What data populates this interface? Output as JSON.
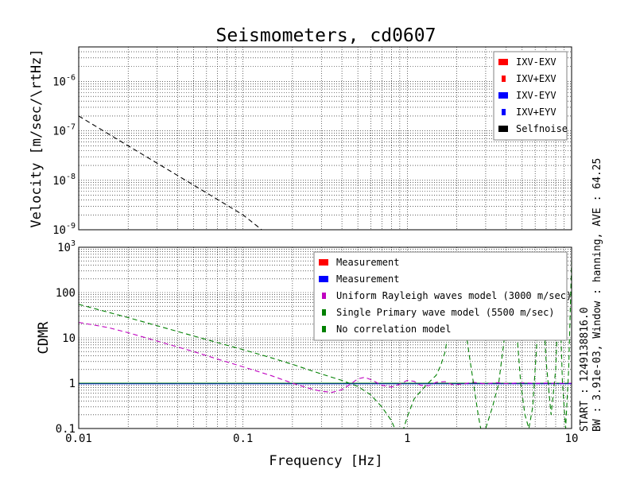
{
  "chart_data": [
    {
      "type": "line",
      "title": "Seismometers, cd0607",
      "ylabel": "Velocity [m/sec/\\rtHz]",
      "xscale": "log",
      "yscale": "log",
      "xlim": [
        0.01,
        10
      ],
      "ylim": [
        1e-09,
        5e-06
      ],
      "y_ticks": [
        {
          "value": 1e-06,
          "base": "10",
          "exp": "-6"
        },
        {
          "value": 1e-07,
          "base": "10",
          "exp": "-7"
        },
        {
          "value": 1e-08,
          "base": "10",
          "exp": "-8"
        },
        {
          "value": 1e-09,
          "base": "10",
          "exp": "-9"
        }
      ],
      "grid": true,
      "legend_position": "top-right",
      "legend": [
        {
          "name": "IXV-EXV",
          "color": "#ff0000"
        },
        {
          "name": "IXV+EXV",
          "color": "#ff0000"
        },
        {
          "name": "IXV-EYV",
          "color": "#0000ff"
        },
        {
          "name": "IXV+EYV",
          "color": "#0000ff"
        },
        {
          "name": "Selfnoise",
          "color": "#000000"
        }
      ],
      "series": [
        {
          "name": "Selfnoise",
          "color": "#000000",
          "dashed": true,
          "x": [
            0.01,
            0.02,
            0.05,
            0.1,
            0.13
          ],
          "y": [
            2e-07,
            5e-08,
            8e-09,
            2e-09,
            1e-09
          ]
        }
      ]
    },
    {
      "type": "line",
      "xlabel": "Frequency [Hz]",
      "ylabel": "CDMR",
      "xscale": "log",
      "yscale": "log",
      "xlim": [
        0.01,
        10
      ],
      "ylim": [
        0.1,
        1000
      ],
      "x_ticks": [
        {
          "value": 0.01,
          "label": "0.01"
        },
        {
          "value": 0.1,
          "label": "0.1"
        },
        {
          "value": 1,
          "label": "1"
        },
        {
          "value": 10,
          "label": "10"
        }
      ],
      "y_ticks": [
        {
          "value": 1000,
          "base": "10",
          "exp": "3"
        },
        {
          "value": 100,
          "base": "100",
          "exp": ""
        },
        {
          "value": 10,
          "base": "10",
          "exp": ""
        },
        {
          "value": 1,
          "base": "1",
          "exp": ""
        },
        {
          "value": 0.1,
          "base": "0.1",
          "exp": ""
        }
      ],
      "grid": true,
      "legend_position": "top-right",
      "legend": [
        {
          "name": "Measurement",
          "color": "#ff0000"
        },
        {
          "name": "Measurement",
          "color": "#0000ff"
        },
        {
          "name": "Uniform Rayleigh waves model (3000 m/sec)",
          "color": "#bf00bf"
        },
        {
          "name": "Single Primary wave model (5500 m/sec)",
          "color": "#008000"
        },
        {
          "name": "No correlation model",
          "color": "#008000"
        }
      ],
      "series": [
        {
          "name": "No correlation model",
          "color": "#008000",
          "dashed": false,
          "x": [
            0.01,
            10
          ],
          "y": [
            1,
            1
          ]
        },
        {
          "name": "Uniform Rayleigh waves model (3000 m/sec)",
          "color": "#bf00bf",
          "dashed": true,
          "x": [
            0.01,
            0.015,
            0.02,
            0.03,
            0.05,
            0.07,
            0.1,
            0.15,
            0.2,
            0.25,
            0.3,
            0.35,
            0.4,
            0.45,
            0.5,
            0.55,
            0.6,
            0.7,
            0.8,
            0.9,
            1.0,
            1.1,
            1.2,
            1.35,
            1.5,
            1.7,
            1.9,
            2.2,
            2.5,
            3,
            3.5,
            4,
            5,
            6,
            7,
            8,
            9,
            10
          ],
          "y": [
            22,
            17,
            13,
            8.5,
            5,
            3.4,
            2.3,
            1.45,
            1.0,
            0.78,
            0.66,
            0.63,
            0.72,
            0.95,
            1.25,
            1.35,
            1.2,
            0.9,
            0.82,
            0.95,
            1.15,
            1.1,
            0.9,
            0.88,
            1.05,
            1.08,
            0.92,
            0.96,
            1.05,
            0.97,
            1.03,
            0.98,
            1.02,
            0.99,
            1.01,
            0.99,
            1.0,
            1.0
          ]
        },
        {
          "name": "Single Primary wave model (5500 m/sec)",
          "color": "#008000",
          "dashed": true,
          "x": [
            0.01,
            0.02,
            0.05,
            0.1,
            0.15,
            0.2,
            0.3,
            0.4,
            0.5,
            0.6,
            0.7,
            0.8,
            0.85,
            0.9,
            0.95,
            1.0,
            1.1,
            1.3,
            1.5,
            1.6,
            1.7,
            1.8,
            1.9,
            2.0,
            2.1,
            2.2,
            2.3,
            2.4,
            2.5,
            2.6,
            2.7,
            2.8,
            3.0,
            3.3,
            3.6,
            3.9,
            4.3,
            4.6,
            4.9,
            5.2,
            5.5,
            5.8,
            6.1,
            6.5,
            7.0,
            7.5,
            8.0,
            8.4,
            8.8,
            9.2,
            9.6,
            10
          ],
          "y": [
            55,
            28,
            11,
            5.5,
            3.6,
            2.6,
            1.6,
            1.15,
            0.85,
            0.55,
            0.3,
            0.15,
            0.09,
            0.08,
            0.1,
            0.18,
            0.45,
            0.9,
            1.5,
            2.5,
            5,
            20,
            100,
            400,
            200,
            40,
            10,
            3.5,
            1.3,
            0.5,
            0.2,
            0.1,
            0.1,
            0.3,
            1,
            10,
            800,
            20,
            1,
            0.2,
            0.1,
            0.3,
            5,
            400,
            3,
            0.2,
            2,
            200,
            1,
            0.1,
            2,
            500
          ]
        }
      ],
      "measurement_color": "#0000ff",
      "measurement_value": 1
    }
  ],
  "side_text": {
    "line1": "START : 1249138816.0",
    "line2": "BW : 3.91e-03, Window : hanning, AVE : 64.25"
  }
}
